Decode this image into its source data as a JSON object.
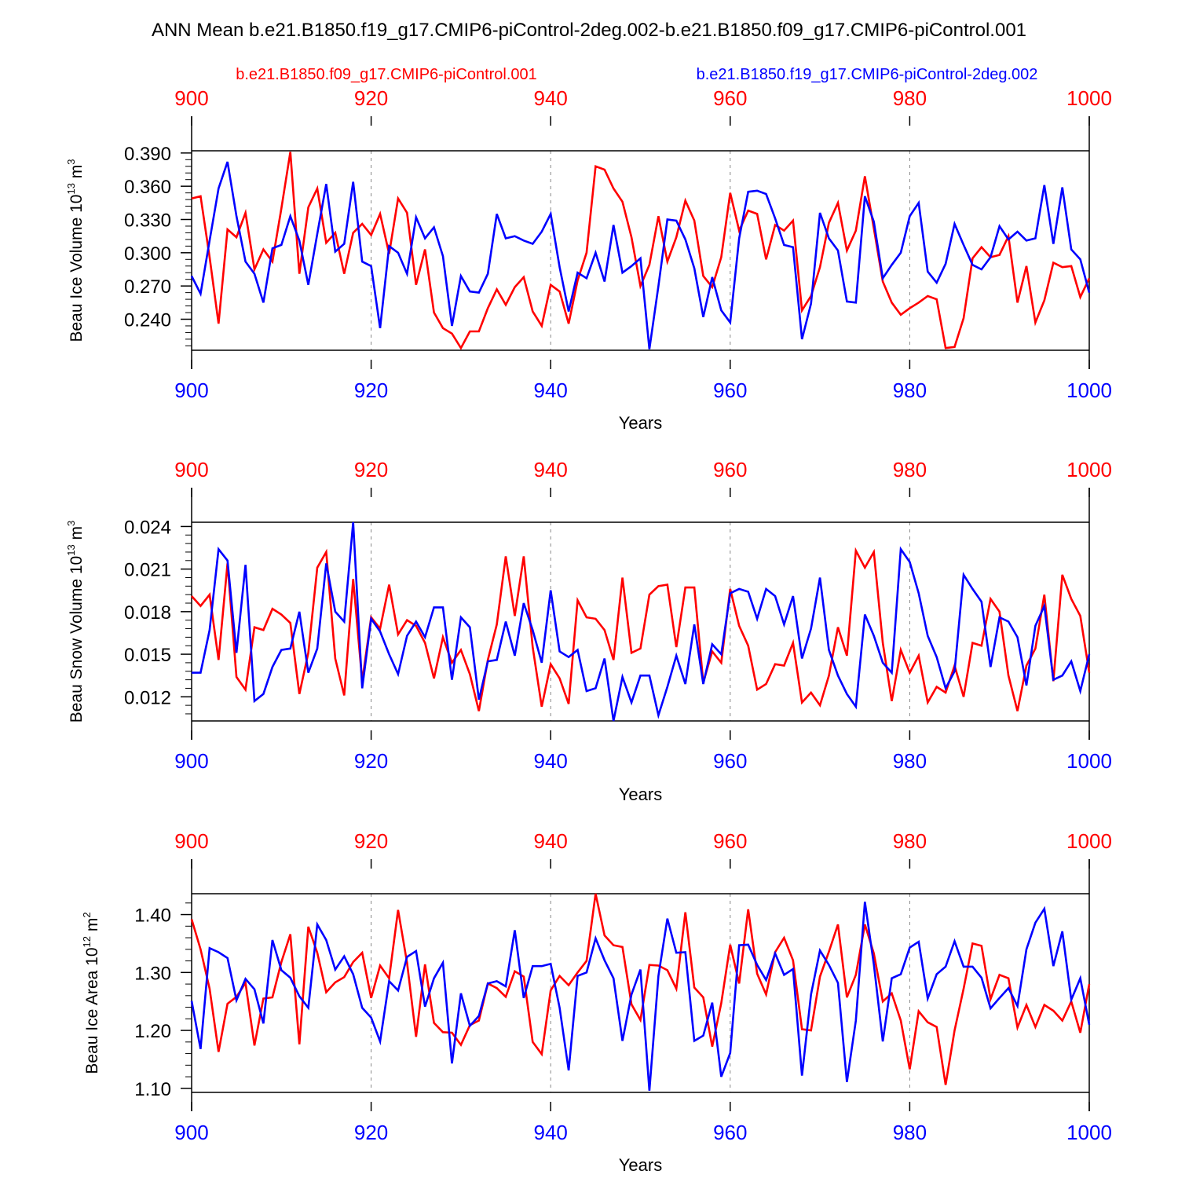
{
  "figure": {
    "title": "ANN Mean b.e21.B1850.f19_g17.CMIP6-piControl-2deg.002-b.e21.B1850.f09_g17.CMIP6-piControl.001",
    "colors": {
      "case1": "#ff0000",
      "case2": "#0000ff",
      "axis": "#000000",
      "grid": "#888888"
    },
    "legend": [
      {
        "name": "b.e21.B1850.f09_g17.CMIP6-piControl.001",
        "color": "#ff0000"
      },
      {
        "name": "b.e21.B1850.f19_g17.CMIP6-piControl-2deg.002",
        "color": "#0000ff"
      }
    ]
  },
  "chart_data": [
    {
      "type": "line",
      "ylabel_main": "Beau Ice Volume 10",
      "ylabel_exp": "13",
      "ylabel_unit": " m",
      "ylabel_unit_exp": "3",
      "xlabel": "Years",
      "xlim": [
        900,
        1000
      ],
      "ylim": [
        0.212,
        0.392
      ],
      "xticks": [
        900,
        920,
        940,
        960,
        980,
        1000
      ],
      "yticks": [
        0.24,
        0.27,
        0.3,
        0.33,
        0.36,
        0.39
      ],
      "ytick_labels": [
        "0.240",
        "0.270",
        "0.300",
        "0.330",
        "0.360",
        "0.390"
      ],
      "yminor_step": 0.006,
      "x": {
        "start": 900,
        "end": 1000,
        "step": 1
      },
      "series": [
        {
          "name": "b.e21.B1850.f09_g17.CMIP6-piControl.001",
          "color": "#ff0000",
          "values": [
            0.349,
            0.351,
            0.296,
            0.236,
            0.321,
            0.314,
            0.336,
            0.285,
            0.303,
            0.292,
            0.34,
            0.391,
            0.281,
            0.341,
            0.358,
            0.309,
            0.318,
            0.281,
            0.318,
            0.326,
            0.316,
            0.335,
            0.299,
            0.349,
            0.336,
            0.271,
            0.303,
            0.246,
            0.232,
            0.227,
            0.214,
            0.229,
            0.229,
            0.25,
            0.267,
            0.253,
            0.269,
            0.278,
            0.247,
            0.234,
            0.271,
            0.265,
            0.236,
            0.275,
            0.3,
            0.378,
            0.375,
            0.358,
            0.346,
            0.314,
            0.27,
            0.289,
            0.333,
            0.292,
            0.314,
            0.347,
            0.329,
            0.279,
            0.269,
            0.296,
            0.354,
            0.32,
            0.338,
            0.335,
            0.294,
            0.325,
            0.32,
            0.329,
            0.248,
            0.261,
            0.287,
            0.327,
            0.345,
            0.302,
            0.32,
            0.369,
            0.322,
            0.274,
            0.255,
            0.244,
            0.25,
            0.255,
            0.261,
            0.258,
            0.214,
            0.215,
            0.241,
            0.295,
            0.305,
            0.296,
            0.298,
            0.315,
            0.255,
            0.288,
            0.237,
            0.257,
            0.291,
            0.287,
            0.288,
            0.26,
            0.277
          ]
        },
        {
          "name": "b.e21.B1850.f19_g17.CMIP6-piControl-2deg.002",
          "color": "#0000ff",
          "values": [
            0.279,
            0.263,
            0.311,
            0.358,
            0.382,
            0.333,
            0.292,
            0.281,
            0.255,
            0.304,
            0.307,
            0.333,
            0.311,
            0.271,
            0.317,
            0.362,
            0.301,
            0.308,
            0.364,
            0.292,
            0.288,
            0.232,
            0.306,
            0.3,
            0.281,
            0.332,
            0.313,
            0.323,
            0.297,
            0.234,
            0.279,
            0.265,
            0.264,
            0.281,
            0.335,
            0.313,
            0.315,
            0.311,
            0.308,
            0.319,
            0.335,
            0.287,
            0.247,
            0.282,
            0.277,
            0.3,
            0.274,
            0.325,
            0.282,
            0.288,
            0.295,
            0.213,
            0.27,
            0.33,
            0.329,
            0.312,
            0.286,
            0.242,
            0.278,
            0.248,
            0.237,
            0.313,
            0.355,
            0.356,
            0.353,
            0.331,
            0.307,
            0.305,
            0.222,
            0.254,
            0.336,
            0.313,
            0.302,
            0.256,
            0.255,
            0.351,
            0.328,
            0.277,
            0.289,
            0.3,
            0.333,
            0.345,
            0.283,
            0.273,
            0.29,
            0.326,
            0.307,
            0.289,
            0.285,
            0.296,
            0.324,
            0.312,
            0.319,
            0.311,
            0.313,
            0.361,
            0.308,
            0.359,
            0.303,
            0.294,
            0.264
          ]
        }
      ]
    },
    {
      "type": "line",
      "ylabel_main": "Beau Snow Volume 10",
      "ylabel_exp": "13",
      "ylabel_unit": " m",
      "ylabel_unit_exp": "3",
      "xlabel": "Years",
      "xlim": [
        900,
        1000
      ],
      "ylim": [
        0.0103,
        0.0243
      ],
      "xticks": [
        900,
        920,
        940,
        960,
        980,
        1000
      ],
      "yticks": [
        0.012,
        0.015,
        0.018,
        0.021,
        0.024
      ],
      "ytick_labels": [
        "0.012",
        "0.015",
        "0.018",
        "0.021",
        "0.024"
      ],
      "yminor_step": 0.0006,
      "x": {
        "start": 900,
        "end": 1000,
        "step": 1
      },
      "series": [
        {
          "name": "b.e21.B1850.f09_g17.CMIP6-piControl.001",
          "color": "#ff0000",
          "values": [
            0.0191,
            0.0184,
            0.0192,
            0.0146,
            0.0214,
            0.0134,
            0.0125,
            0.0169,
            0.0167,
            0.0182,
            0.0178,
            0.0172,
            0.0122,
            0.0151,
            0.0211,
            0.0222,
            0.0147,
            0.0121,
            0.0203,
            0.0131,
            0.0176,
            0.0168,
            0.0199,
            0.0164,
            0.0174,
            0.017,
            0.0158,
            0.0133,
            0.0162,
            0.0144,
            0.0153,
            0.0136,
            0.011,
            0.0146,
            0.0171,
            0.0219,
            0.0177,
            0.0219,
            0.0155,
            0.0113,
            0.0143,
            0.0133,
            0.0115,
            0.0188,
            0.0176,
            0.0175,
            0.0167,
            0.0146,
            0.0204,
            0.0151,
            0.0154,
            0.0192,
            0.0198,
            0.0199,
            0.0155,
            0.0197,
            0.0197,
            0.013,
            0.0152,
            0.0144,
            0.0196,
            0.017,
            0.0156,
            0.0125,
            0.0129,
            0.0143,
            0.0142,
            0.0158,
            0.0116,
            0.0123,
            0.0114,
            0.0135,
            0.0169,
            0.0149,
            0.0223,
            0.0211,
            0.0222,
            0.0158,
            0.0117,
            0.0153,
            0.0137,
            0.0149,
            0.0116,
            0.0127,
            0.0123,
            0.0142,
            0.012,
            0.0158,
            0.0156,
            0.0189,
            0.018,
            0.0135,
            0.011,
            0.0142,
            0.0154,
            0.0192,
            0.0131,
            0.0206,
            0.0189,
            0.0177,
            0.0137
          ]
        },
        {
          "name": "b.e21.B1850.f19_g17.CMIP6-piControl-2deg.002",
          "color": "#0000ff",
          "values": [
            0.0137,
            0.0137,
            0.0167,
            0.0224,
            0.0216,
            0.0151,
            0.0213,
            0.0117,
            0.0122,
            0.0141,
            0.0153,
            0.0154,
            0.018,
            0.0137,
            0.0154,
            0.0214,
            0.018,
            0.0173,
            0.0243,
            0.0126,
            0.0175,
            0.0166,
            0.015,
            0.0136,
            0.0163,
            0.0173,
            0.0162,
            0.0183,
            0.0183,
            0.0132,
            0.0176,
            0.0169,
            0.0118,
            0.0145,
            0.0146,
            0.0173,
            0.0149,
            0.0186,
            0.0167,
            0.0144,
            0.0195,
            0.0152,
            0.0148,
            0.0153,
            0.0124,
            0.0126,
            0.0147,
            0.0103,
            0.0134,
            0.0116,
            0.0135,
            0.0135,
            0.0107,
            0.0127,
            0.0149,
            0.0129,
            0.0171,
            0.0129,
            0.0157,
            0.015,
            0.0193,
            0.0196,
            0.0194,
            0.0175,
            0.0196,
            0.0191,
            0.0171,
            0.0191,
            0.0147,
            0.0168,
            0.0204,
            0.0153,
            0.0135,
            0.0122,
            0.0113,
            0.0178,
            0.0163,
            0.0144,
            0.0137,
            0.0224,
            0.0215,
            0.0193,
            0.0163,
            0.0148,
            0.0126,
            0.0138,
            0.0206,
            0.0196,
            0.0187,
            0.0141,
            0.0176,
            0.0173,
            0.0162,
            0.0128,
            0.017,
            0.0184,
            0.0132,
            0.0135,
            0.0145,
            0.0124,
            0.015
          ]
        }
      ]
    },
    {
      "type": "line",
      "ylabel_main": "Beau Ice Area 10",
      "ylabel_exp": "12",
      "ylabel_unit": " m",
      "ylabel_unit_exp": "2",
      "xlabel": "Years",
      "xlim": [
        900,
        1000
      ],
      "ylim": [
        1.093,
        1.436
      ],
      "xticks": [
        900,
        920,
        940,
        960,
        980,
        1000
      ],
      "yticks": [
        1.1,
        1.2,
        1.3,
        1.4
      ],
      "ytick_labels": [
        "1.10",
        "1.20",
        "1.30",
        "1.40"
      ],
      "yminor_step": 0.02,
      "x": {
        "start": 900,
        "end": 1000,
        "step": 1
      },
      "series": [
        {
          "name": "b.e21.B1850.f09_g17.CMIP6-piControl.001",
          "color": "#ff0000",
          "values": [
            1.392,
            1.34,
            1.272,
            1.163,
            1.246,
            1.258,
            1.282,
            1.174,
            1.255,
            1.257,
            1.318,
            1.366,
            1.176,
            1.379,
            1.334,
            1.266,
            1.283,
            1.292,
            1.318,
            1.334,
            1.256,
            1.312,
            1.29,
            1.408,
            1.317,
            1.189,
            1.314,
            1.213,
            1.197,
            1.196,
            1.175,
            1.209,
            1.217,
            1.281,
            1.273,
            1.258,
            1.302,
            1.293,
            1.18,
            1.159,
            1.269,
            1.294,
            1.278,
            1.3,
            1.32,
            1.436,
            1.364,
            1.347,
            1.344,
            1.245,
            1.218,
            1.313,
            1.312,
            1.304,
            1.272,
            1.404,
            1.274,
            1.257,
            1.172,
            1.247,
            1.348,
            1.281,
            1.409,
            1.298,
            1.262,
            1.335,
            1.36,
            1.321,
            1.202,
            1.2,
            1.293,
            1.336,
            1.383,
            1.257,
            1.296,
            1.383,
            1.333,
            1.25,
            1.264,
            1.217,
            1.133,
            1.233,
            1.214,
            1.206,
            1.106,
            1.2,
            1.272,
            1.35,
            1.346,
            1.254,
            1.296,
            1.29,
            1.205,
            1.244,
            1.206,
            1.244,
            1.234,
            1.217,
            1.25,
            1.196,
            1.28
          ]
        },
        {
          "name": "b.e21.B1850.f19_g17.CMIP6-piControl-2deg.002",
          "color": "#0000ff",
          "values": [
            1.251,
            1.168,
            1.342,
            1.335,
            1.325,
            1.252,
            1.289,
            1.271,
            1.212,
            1.356,
            1.304,
            1.291,
            1.259,
            1.239,
            1.383,
            1.356,
            1.305,
            1.328,
            1.297,
            1.239,
            1.222,
            1.181,
            1.285,
            1.269,
            1.327,
            1.337,
            1.241,
            1.29,
            1.317,
            1.143,
            1.264,
            1.208,
            1.225,
            1.281,
            1.285,
            1.276,
            1.373,
            1.256,
            1.311,
            1.311,
            1.315,
            1.239,
            1.131,
            1.294,
            1.3,
            1.359,
            1.321,
            1.29,
            1.182,
            1.262,
            1.305,
            1.096,
            1.294,
            1.393,
            1.334,
            1.335,
            1.182,
            1.191,
            1.248,
            1.12,
            1.161,
            1.347,
            1.348,
            1.313,
            1.287,
            1.333,
            1.296,
            1.306,
            1.122,
            1.262,
            1.338,
            1.313,
            1.282,
            1.111,
            1.217,
            1.422,
            1.314,
            1.181,
            1.29,
            1.297,
            1.343,
            1.353,
            1.255,
            1.297,
            1.31,
            1.354,
            1.31,
            1.31,
            1.291,
            1.238,
            1.256,
            1.273,
            1.242,
            1.34,
            1.386,
            1.41,
            1.311,
            1.371,
            1.253,
            1.29,
            1.21
          ]
        }
      ]
    }
  ]
}
